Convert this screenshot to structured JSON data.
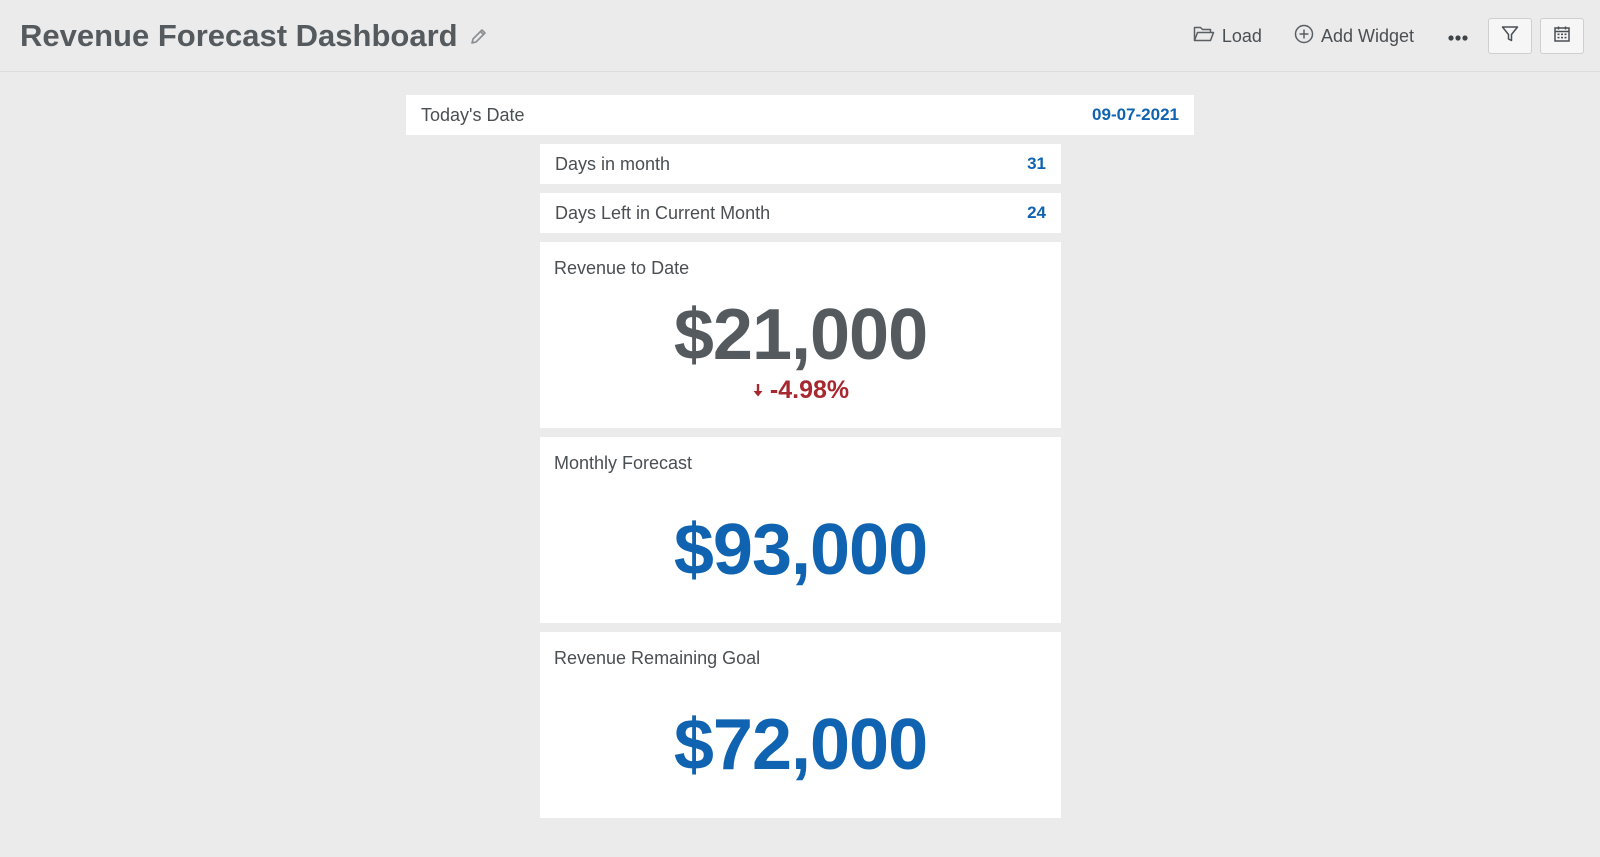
{
  "header": {
    "title": "Revenue Forecast Dashboard",
    "load_label": "Load",
    "add_widget_label": "Add Widget"
  },
  "icons": {
    "edit": "pencil-icon",
    "load": "folder-open-icon",
    "add_widget": "plus-circle-icon",
    "more": "ellipsis-icon",
    "filter": "filter-icon",
    "calendar": "calendar-icon"
  },
  "colors": {
    "background": "#ebebeb",
    "card": "#ffffff",
    "accent_blue": "#0f63b0",
    "negative_red": "#a8282f",
    "text_gray": "#545a5e"
  },
  "widgets": {
    "todays_date": {
      "label": "Today's Date",
      "value": "09-07-2021"
    },
    "days_in_month": {
      "label": "Days in month",
      "value": "31"
    },
    "days_left": {
      "label": "Days Left in Current Month",
      "value": "24"
    },
    "revenue_to_date": {
      "label": "Revenue to Date",
      "value": "$21,000",
      "change": "-4.98%"
    },
    "monthly_forecast": {
      "label": "Monthly Forecast",
      "value": "$93,000"
    },
    "revenue_remaining_goal": {
      "label": "Revenue Remaining Goal",
      "value": "$72,000"
    }
  }
}
